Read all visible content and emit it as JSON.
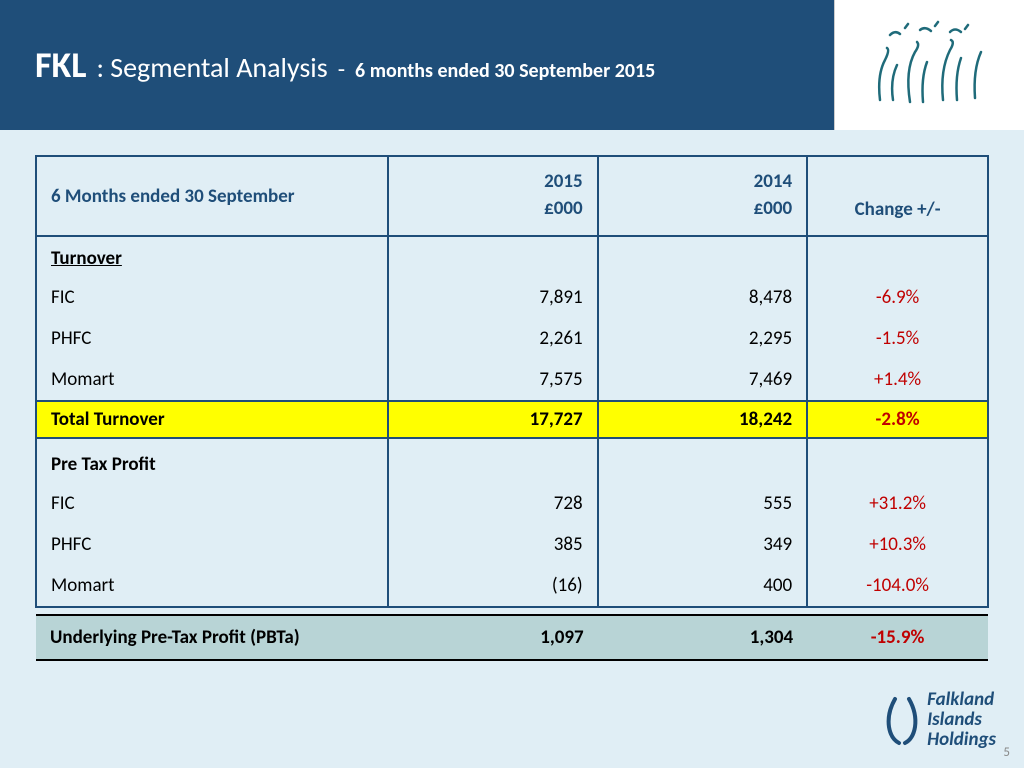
{
  "header": {
    "title_main": "FKL",
    "title_sub": ": Segmental Analysis",
    "title_dash": "-",
    "title_period": "6 months ended 30 September 2015"
  },
  "table": {
    "col_label": "6 Months ended 30 September",
    "col_2015_year": "2015",
    "col_2015_unit": "£000",
    "col_2014_year": "2014",
    "col_2014_unit": "£000",
    "col_change": "Change  +/-",
    "section_turnover": "Turnover",
    "section_ptp": "Pre Tax Profit",
    "rows_turnover": [
      {
        "label": "FIC",
        "y2015": "7,891",
        "y2014": "8,478",
        "change": "-6.9%",
        "cls": "neg"
      },
      {
        "label": "PHFC",
        "y2015": "2,261",
        "y2014": "2,295",
        "change": "-1.5%",
        "cls": "neg"
      },
      {
        "label": "Momart",
        "y2015": "7,575",
        "y2014": "7,469",
        "change": "+1.4%",
        "cls": "pos"
      }
    ],
    "total_turnover": {
      "label": "Total Turnover",
      "y2015": "17,727",
      "y2014": "18,242",
      "change": "-2.8%"
    },
    "rows_ptp": [
      {
        "label": "FIC",
        "y2015": "728",
        "y2014": "555",
        "change": "+31.2%",
        "cls": "pos"
      },
      {
        "label": "PHFC",
        "y2015": "385",
        "y2014": "349",
        "change": "+10.3%",
        "cls": "pos"
      },
      {
        "label": "Momart",
        "y2015": "(16)",
        "y2014": "400",
        "change": "-104.0%",
        "cls": "neg"
      }
    ],
    "pbta": {
      "label": "Underlying Pre-Tax Profit (PBTa)",
      "y2015": "1,097",
      "y2014": "1,304",
      "change": "-15.9%"
    }
  },
  "footer": {
    "brand_line1": "Falkland",
    "brand_line2": "Islands",
    "brand_line3": "Holdings",
    "page": "5"
  },
  "colors": {
    "header_bg": "#1f4e79",
    "page_bg": "#e0eef5",
    "highlight_bg": "#ffff00",
    "pbta_bg": "#b8d4d6",
    "change_color": "#c00000",
    "brand_color": "#1f4e79"
  }
}
